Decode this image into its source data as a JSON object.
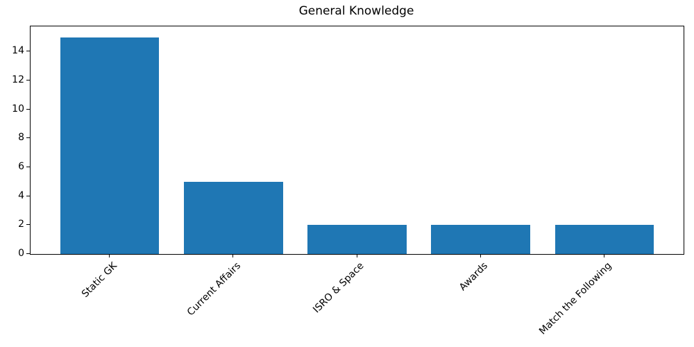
{
  "chart_data": {
    "type": "bar",
    "title": "General Knowledge",
    "categories": [
      "Static GK",
      "Current Affairs",
      "ISRO & Space",
      "Awards",
      "Match the Following"
    ],
    "values": [
      15,
      5,
      2,
      2,
      2
    ],
    "xlabel": "",
    "ylabel": "",
    "ylim": [
      0,
      15.75
    ],
    "yticks": [
      0,
      2,
      4,
      6,
      8,
      10,
      12,
      14
    ],
    "x_tick_rotation_deg": 45,
    "bar_color": "#1f77b4",
    "axis_color": "#000000",
    "background_color": "#ffffff",
    "grid": false,
    "legend": "none"
  }
}
